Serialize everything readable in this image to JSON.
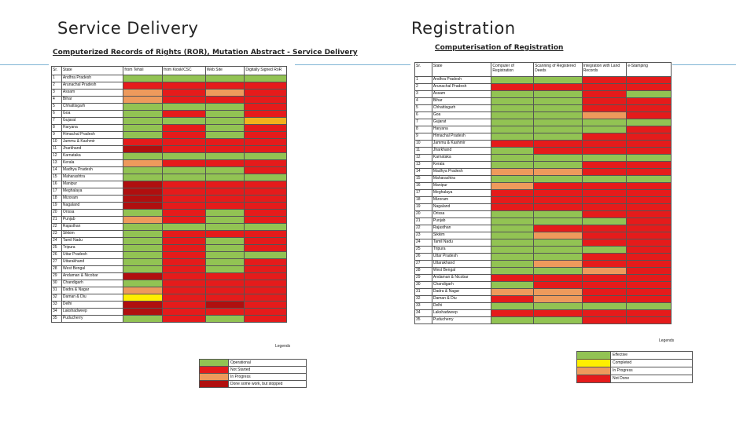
{
  "slide": {
    "left_heading": "Service Delivery",
    "right_heading": "Registration"
  },
  "colors": {
    "G": "#92c353",
    "R": "#e51b1b",
    "D": "#b00f0f",
    "O": "#ee9a5c",
    "Y": "#ffee00",
    "A": "#f2b11c",
    "W": "#ffffff"
  },
  "ror": {
    "title": "Computerized Records of Rights (ROR), Mutation Abstract - Service Delivery",
    "headers": [
      "Sr.",
      "State",
      "from Tehsil",
      "from Kiosk/CSC",
      "Web Site",
      "Digitally Signed RoR"
    ],
    "rows": [
      [
        "1",
        "Andhra Pradesh",
        "G",
        "G",
        "G",
        "G"
      ],
      [
        "2",
        "Arunachal Pradesh",
        "R",
        "R",
        "R",
        "R"
      ],
      [
        "3",
        "Assam",
        "O",
        "R",
        "O",
        "R"
      ],
      [
        "4",
        "Bihar",
        "O",
        "R",
        "R",
        "R"
      ],
      [
        "5",
        "Chhattisgarh",
        "G",
        "G",
        "G",
        "R"
      ],
      [
        "6",
        "Goa",
        "G",
        "R",
        "G",
        "R"
      ],
      [
        "7",
        "Gujarat",
        "G",
        "G",
        "G",
        "A"
      ],
      [
        "8",
        "Haryana",
        "G",
        "R",
        "G",
        "R"
      ],
      [
        "9",
        "Himachal Pradesh",
        "G",
        "R",
        "G",
        "R"
      ],
      [
        "10",
        "Jammu & Kashmir",
        "R",
        "R",
        "R",
        "R"
      ],
      [
        "11",
        "Jharkhand",
        "D",
        "R",
        "R",
        "R"
      ],
      [
        "12",
        "Karnataka",
        "G",
        "G",
        "G",
        "G"
      ],
      [
        "13",
        "Kerala",
        "O",
        "R",
        "R",
        "R"
      ],
      [
        "14",
        "Madhya Pradesh",
        "G",
        "G",
        "G",
        "R"
      ],
      [
        "15",
        "Maharashtra",
        "G",
        "G",
        "G",
        "G"
      ],
      [
        "16",
        "Manipur",
        "D",
        "R",
        "R",
        "R"
      ],
      [
        "17",
        "Meghalaya",
        "D",
        "R",
        "R",
        "R"
      ],
      [
        "18",
        "Mizoram",
        "D",
        "R",
        "R",
        "R"
      ],
      [
        "19",
        "Nagaland",
        "D",
        "R",
        "R",
        "R"
      ],
      [
        "20",
        "Orissa",
        "G",
        "R",
        "G",
        "R"
      ],
      [
        "21",
        "Punjab",
        "O",
        "R",
        "G",
        "R"
      ],
      [
        "22",
        "Rajasthan",
        "G",
        "G",
        "G",
        "G"
      ],
      [
        "23",
        "Sikkim",
        "G",
        "R",
        "R",
        "R"
      ],
      [
        "24",
        "Tamil Nadu",
        "G",
        "R",
        "G",
        "R"
      ],
      [
        "25",
        "Tripura",
        "G",
        "R",
        "G",
        "R"
      ],
      [
        "26",
        "Uttar Pradesh",
        "G",
        "R",
        "G",
        "G"
      ],
      [
        "27",
        "Uttarakhand",
        "G",
        "R",
        "G",
        "R"
      ],
      [
        "28",
        "West Bengal",
        "G",
        "R",
        "G",
        "R"
      ],
      [
        "29",
        "Andaman & Nicobar",
        "D",
        "R",
        "R",
        "R"
      ],
      [
        "30",
        "Chandigarh",
        "G",
        "R",
        "R",
        "R"
      ],
      [
        "31",
        "Dadra & Nagar",
        "O",
        "R",
        "R",
        "R"
      ],
      [
        "32",
        "Daman & Diu",
        "Y",
        "R",
        "R",
        "R"
      ],
      [
        "33",
        "Delhi",
        "D",
        "R",
        "D",
        "R"
      ],
      [
        "34",
        "Lakshadweep",
        "D",
        "R",
        "R",
        "R"
      ],
      [
        "35",
        "Puducherry",
        "G",
        "R",
        "G",
        "R"
      ]
    ],
    "legend_label": "Legends",
    "legend": [
      {
        "color": "G",
        "text": "Operational"
      },
      {
        "color": "R",
        "text": "Not Started"
      },
      {
        "color": "O",
        "text": "In Progress"
      },
      {
        "color": "D",
        "text": "Done some work, but stopped"
      }
    ]
  },
  "reg": {
    "title": "Computerisation of Registration",
    "headers": [
      "Sr.",
      "State",
      "Computer of Registration",
      "Scanning of Registered Deeds",
      "Integration with Land Records",
      "e-Stamping"
    ],
    "rows": [
      [
        "1",
        "Andhra Pradesh",
        "G",
        "G",
        "R",
        "R"
      ],
      [
        "2",
        "Arunachal Pradesh",
        "R",
        "R",
        "R",
        "R"
      ],
      [
        "3",
        "Assam",
        "G",
        "G",
        "R",
        "G"
      ],
      [
        "4",
        "Bihar",
        "G",
        "G",
        "R",
        "R"
      ],
      [
        "5",
        "Chhattisgarh",
        "G",
        "G",
        "R",
        "R"
      ],
      [
        "6",
        "Goa",
        "G",
        "G",
        "O",
        "R"
      ],
      [
        "7",
        "Gujarat",
        "G",
        "G",
        "G",
        "G"
      ],
      [
        "8",
        "Haryana",
        "G",
        "G",
        "G",
        "R"
      ],
      [
        "9",
        "Himachal Pradesh",
        "G",
        "G",
        "R",
        "R"
      ],
      [
        "10",
        "Jammu & Kashmir",
        "R",
        "R",
        "R",
        "R"
      ],
      [
        "11",
        "Jharkhand",
        "G",
        "R",
        "R",
        "R"
      ],
      [
        "12",
        "Karnataka",
        "G",
        "G",
        "G",
        "G"
      ],
      [
        "13",
        "Kerala",
        "G",
        "G",
        "R",
        "R"
      ],
      [
        "14",
        "Madhya Pradesh",
        "O",
        "O",
        "R",
        "R"
      ],
      [
        "15",
        "Maharashtra",
        "G",
        "G",
        "G",
        "G"
      ],
      [
        "16",
        "Manipur",
        "O",
        "R",
        "R",
        "R"
      ],
      [
        "17",
        "Meghalaya",
        "R",
        "R",
        "R",
        "R"
      ],
      [
        "18",
        "Mizoram",
        "R",
        "R",
        "R",
        "R"
      ],
      [
        "19",
        "Nagaland",
        "R",
        "R",
        "R",
        "R"
      ],
      [
        "20",
        "Orissa",
        "G",
        "G",
        "R",
        "R"
      ],
      [
        "21",
        "Punjab",
        "G",
        "G",
        "G",
        "R"
      ],
      [
        "22",
        "Rajasthan",
        "G",
        "R",
        "R",
        "R"
      ],
      [
        "23",
        "Sikkim",
        "G",
        "O",
        "R",
        "R"
      ],
      [
        "24",
        "Tamil Nadu",
        "G",
        "G",
        "R",
        "R"
      ],
      [
        "25",
        "Tripura",
        "G",
        "G",
        "G",
        "R"
      ],
      [
        "26",
        "Uttar Pradesh",
        "G",
        "G",
        "R",
        "R"
      ],
      [
        "27",
        "Uttarakhand",
        "G",
        "O",
        "R",
        "R"
      ],
      [
        "28",
        "West Bengal",
        "G",
        "G",
        "O",
        "R"
      ],
      [
        "29",
        "Andaman & Nicobar",
        "R",
        "R",
        "R",
        "R"
      ],
      [
        "30",
        "Chandigarh",
        "G",
        "R",
        "R",
        "R"
      ],
      [
        "31",
        "Dadra & Nagar",
        "O",
        "O",
        "R",
        "R"
      ],
      [
        "32",
        "Daman & Diu",
        "R",
        "O",
        "R",
        "R"
      ],
      [
        "33",
        "Delhi",
        "G",
        "G",
        "G",
        "G"
      ],
      [
        "34",
        "Lakshadweep",
        "R",
        "R",
        "R",
        "R"
      ],
      [
        "35",
        "Puducherry",
        "G",
        "G",
        "R",
        "R"
      ]
    ],
    "legend_label": "Legends",
    "legend": [
      {
        "color": "G",
        "text": "Effective"
      },
      {
        "color": "Y",
        "text": "Completed"
      },
      {
        "color": "O",
        "text": "In Progress"
      },
      {
        "color": "R",
        "text": "Not Done"
      }
    ]
  }
}
